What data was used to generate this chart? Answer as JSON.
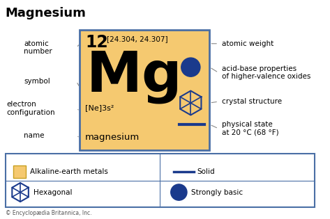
{
  "title": "Magnesium",
  "bg_color": "#ffffff",
  "card_color": "#f5c970",
  "card_border_color": "#4a6fa5",
  "atomic_number": "12",
  "atomic_weight": "[24.304, 24.307]",
  "symbol": "Mg",
  "electron_config": "[Ne]3s²",
  "name": "magnesium",
  "left_labels": [
    "atomic\nnumber",
    "symbol",
    "electron\nconfiguration",
    "name"
  ],
  "right_labels": [
    "atomic weight",
    "acid-base properties\nof higher-valence oxides",
    "crystal structure",
    "physical state\nat 20 °C (68 °F)"
  ],
  "legend_label1": "Alkaline-earth metals",
  "legend_label2": "Solid",
  "legend_label3": "Hexagonal",
  "legend_label4": "Strongly basic",
  "blue_color": "#1a3a8c",
  "arrow_color": "#888888",
  "footer": "© Encyclopædia Britannica, Inc."
}
